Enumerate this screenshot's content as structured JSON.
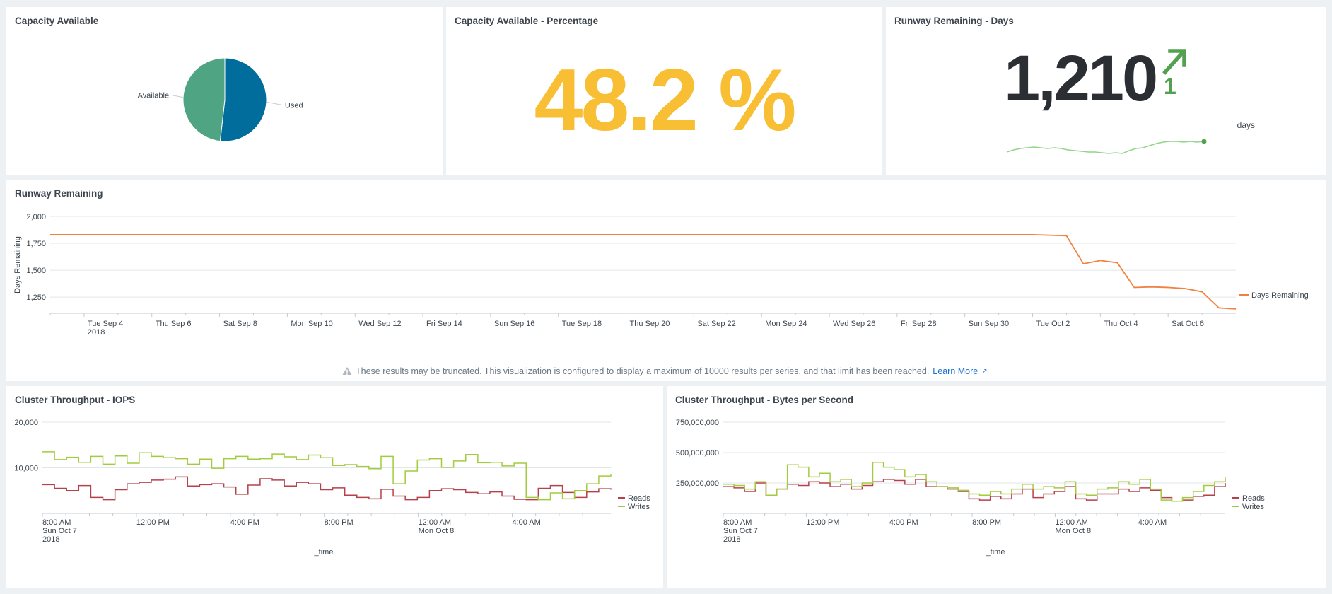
{
  "panels": {
    "capacity": {
      "title": "Capacity Available"
    },
    "percentage": {
      "title": "Capacity Available - Percentage",
      "value": "48.2 %",
      "color": "#f8be34"
    },
    "runway_days": {
      "title": "Runway Remaining - Days",
      "value": "1,210",
      "delta": "1",
      "unit": "days",
      "trend_color": "#53a051",
      "spark_color": "#93d48a"
    },
    "runway": {
      "title": "Runway Remaining",
      "warning": "These results may be truncated. This visualization is configured to display a maximum of 10000 results per series, and that limit has been reached.",
      "learn_more": "Learn More"
    },
    "iops": {
      "title": "Cluster Throughput - IOPS"
    },
    "bytes": {
      "title": "Cluster Throughput - Bytes per Second"
    }
  },
  "colors": {
    "available": "#4fa484",
    "used": "#006d9c",
    "days_remaining": "#f1813f",
    "reads": "#b6404c",
    "writes": "#a2cc3e",
    "grid": "#e1e6eb",
    "axis_text": "#3c444d"
  },
  "chart_data": [
    {
      "type": "pie",
      "title": "Capacity Available",
      "slices": [
        {
          "label": "Used",
          "value": 51.8
        },
        {
          "label": "Available",
          "value": 48.2
        }
      ]
    },
    {
      "type": "line",
      "title": "Runway Remaining",
      "ylabel": "Days Remaining",
      "ylim": [
        1100,
        2000
      ],
      "yticks": [
        "2,000",
        "1,750",
        "1,500",
        "1,250"
      ],
      "ytick_values": [
        2000,
        1750,
        1500,
        1250
      ],
      "xtick_labels": [
        "Tue Sep 4",
        "Thu Sep 6",
        "Sat Sep 8",
        "Mon Sep 10",
        "Wed Sep 12",
        "Fri Sep 14",
        "Sun Sep 16",
        "Tue Sep 18",
        "Thu Sep 20",
        "Sat Sep 22",
        "Mon Sep 24",
        "Wed Sep 26",
        "Fri Sep 28",
        "Sun Sep 30",
        "Tue Oct 2",
        "Thu Oct 4",
        "Sat Oct 6"
      ],
      "xtick_sub": "2018",
      "series": [
        {
          "name": "Days Remaining",
          "x": [
            "2018-09-03",
            "2018-10-02",
            "2018-10-03",
            "2018-10-03T12:00",
            "2018-10-04",
            "2018-10-04T12:00",
            "2018-10-05",
            "2018-10-05T12:00",
            "2018-10-06",
            "2018-10-06T12:00",
            "2018-10-07",
            "2018-10-07T12:00",
            "2018-10-08"
          ],
          "values": [
            1830,
            1830,
            1820,
            1560,
            1590,
            1570,
            1340,
            1345,
            1340,
            1330,
            1300,
            1150,
            1140
          ]
        }
      ],
      "legend": "right"
    },
    {
      "type": "line",
      "title": "Cluster Throughput - IOPS",
      "xlabel": "_time",
      "ylim": [
        0,
        20000
      ],
      "yticks": [
        "20,000",
        "10,000"
      ],
      "ytick_values": [
        20000,
        10000
      ],
      "xtick_labels": [
        "8:00 AM",
        "12:00 PM",
        "4:00 PM",
        "8:00 PM",
        "12:00 AM",
        "4:00 AM"
      ],
      "xtick_sub": [
        [
          "Sun Oct 7",
          "2018"
        ],
        [],
        [],
        [],
        [
          "Mon Oct 8"
        ],
        []
      ],
      "series": [
        {
          "name": "Reads",
          "values": [
            6300,
            5500,
            5000,
            6100,
            3500,
            3000,
            5200,
            6500,
            6800,
            7300,
            7500,
            8000,
            6000,
            6300,
            6500,
            5800,
            4200,
            6200,
            7600,
            7300,
            6000,
            6800,
            6500,
            5200,
            5600,
            4000,
            3500,
            3200,
            5300,
            3800,
            3000,
            3500,
            5000,
            5400,
            5200,
            4600,
            4300,
            4700,
            3800,
            3100,
            3000,
            5500,
            6100,
            4600,
            3500,
            4700,
            5400,
            5200
          ]
        },
        {
          "name": "Writes",
          "values": [
            13500,
            11800,
            12300,
            11200,
            12500,
            10800,
            12600,
            11000,
            13300,
            12500,
            12200,
            12000,
            10800,
            11900,
            9900,
            12000,
            12500,
            11900,
            12000,
            13000,
            12400,
            11800,
            12800,
            12200,
            10500,
            10700,
            10300,
            9800,
            12500,
            6500,
            9300,
            11700,
            12000,
            10100,
            11500,
            12900,
            11100,
            11200,
            10400,
            11000,
            3500,
            3000,
            4500,
            3200,
            5000,
            6500,
            8200,
            8500
          ]
        }
      ],
      "legend": "right"
    },
    {
      "type": "line",
      "title": "Cluster Throughput - Bytes per Second",
      "xlabel": "_time",
      "ylim": [
        0,
        750000000
      ],
      "yticks": [
        "750,000,000",
        "500,000,000",
        "250,000,000"
      ],
      "ytick_values": [
        750000000,
        500000000,
        250000000
      ],
      "xtick_labels": [
        "8:00 AM",
        "12:00 PM",
        "4:00 PM",
        "8:00 PM",
        "12:00 AM",
        "4:00 AM"
      ],
      "xtick_sub": [
        [
          "Sun Oct 7",
          "2018"
        ],
        [],
        [],
        [],
        [
          "Mon Oct 8"
        ],
        []
      ],
      "series": [
        {
          "name": "Reads",
          "values": [
            220000000,
            210000000,
            180000000,
            250000000,
            150000000,
            200000000,
            240000000,
            230000000,
            260000000,
            250000000,
            220000000,
            240000000,
            200000000,
            230000000,
            260000000,
            280000000,
            270000000,
            240000000,
            280000000,
            220000000,
            220000000,
            200000000,
            180000000,
            120000000,
            110000000,
            140000000,
            120000000,
            160000000,
            200000000,
            130000000,
            160000000,
            180000000,
            220000000,
            120000000,
            110000000,
            160000000,
            160000000,
            200000000,
            180000000,
            210000000,
            190000000,
            130000000,
            100000000,
            110000000,
            140000000,
            150000000,
            220000000,
            250000000
          ]
        },
        {
          "name": "Writes",
          "values": [
            240000000,
            230000000,
            200000000,
            260000000,
            150000000,
            200000000,
            400000000,
            380000000,
            300000000,
            330000000,
            260000000,
            280000000,
            220000000,
            250000000,
            420000000,
            380000000,
            360000000,
            300000000,
            320000000,
            260000000,
            220000000,
            210000000,
            190000000,
            160000000,
            150000000,
            180000000,
            160000000,
            200000000,
            240000000,
            200000000,
            220000000,
            210000000,
            260000000,
            160000000,
            150000000,
            200000000,
            210000000,
            260000000,
            240000000,
            280000000,
            200000000,
            110000000,
            100000000,
            130000000,
            180000000,
            230000000,
            260000000,
            300000000
          ]
        }
      ],
      "legend": "right"
    }
  ]
}
